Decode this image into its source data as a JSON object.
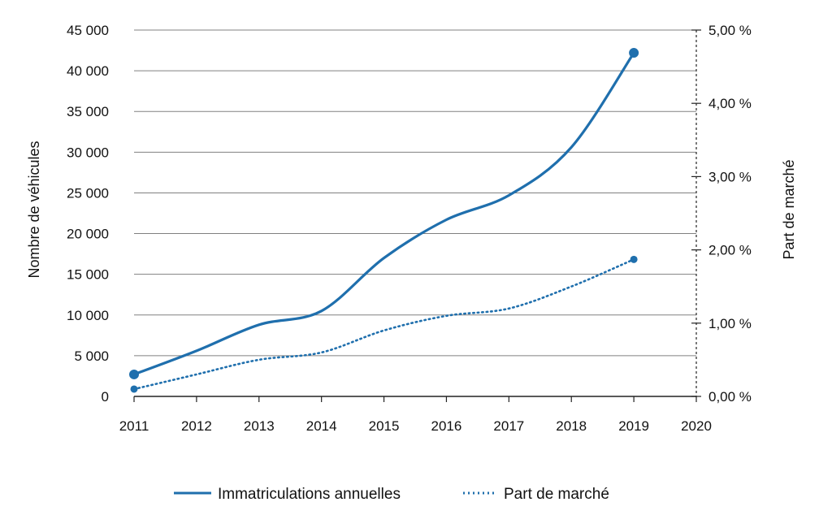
{
  "chart_data": {
    "type": "line",
    "x": [
      2011,
      2012,
      2013,
      2014,
      2015,
      2016,
      2017,
      2018,
      2019
    ],
    "xlim": [
      2011,
      2020
    ],
    "x_ticks": [
      "2011",
      "2012",
      "2013",
      "2014",
      "2015",
      "2016",
      "2017",
      "2018",
      "2019",
      "2020"
    ],
    "ylabel": "Nombre de véhicules",
    "ylim": [
      0,
      45000
    ],
    "y_ticks": [
      "0",
      "5 000",
      "10 000",
      "15 000",
      "20 000",
      "25 000",
      "30 000",
      "35 000",
      "40 000",
      "45 000"
    ],
    "y2label": "Part de marché",
    "y2lim": [
      0,
      5
    ],
    "y2_ticks": [
      "0,00 %",
      "1,00 %",
      "2,00 %",
      "3,00 %",
      "4,00 %",
      "5,00 %"
    ],
    "grid": true,
    "legend_position": "bottom",
    "series": [
      {
        "name": "Immatriculations annuelles",
        "axis": "left",
        "style": "solid",
        "color": "#1f6fad",
        "values": [
          2700,
          5600,
          8800,
          10500,
          17000,
          21700,
          24700,
          30600,
          42200
        ]
      },
      {
        "name": "Part de marché",
        "axis": "right",
        "style": "dotted",
        "color": "#1f6fad",
        "values": [
          0.1,
          0.3,
          0.5,
          0.6,
          0.9,
          1.1,
          1.2,
          1.5,
          1.87
        ]
      }
    ]
  }
}
